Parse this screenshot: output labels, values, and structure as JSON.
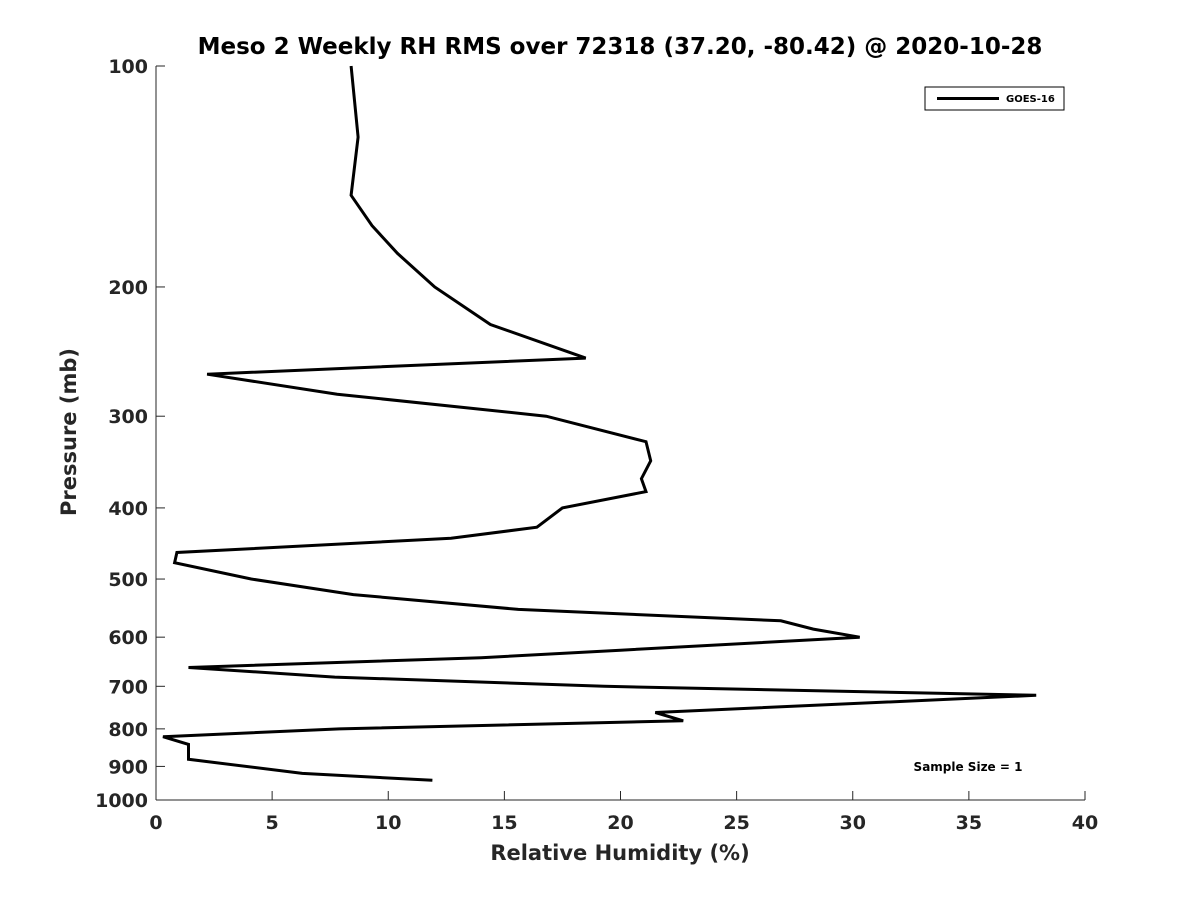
{
  "chart_data": {
    "type": "line",
    "title": "Meso 2 Weekly RH RMS over 72318 (37.20, -80.42) @ 2020-10-28",
    "xlabel": "Relative Humidity (%)",
    "ylabel": "Pressure (mb)",
    "xlim": [
      0,
      40
    ],
    "ylim": [
      100,
      1000
    ],
    "y_scale": "log",
    "y_reversed": true,
    "x_ticks": [
      0,
      5,
      10,
      15,
      20,
      25,
      30,
      35,
      40
    ],
    "y_ticks": [
      100,
      200,
      300,
      400,
      500,
      600,
      700,
      800,
      900,
      1000
    ],
    "grid": false,
    "legend_position": "top-right",
    "colors": {
      "GOES-16": "#000000"
    },
    "series": [
      {
        "name": "GOES-16",
        "points": [
          {
            "x": 8.4,
            "p": 100
          },
          {
            "x": 8.7,
            "p": 125
          },
          {
            "x": 8.4,
            "p": 150
          },
          {
            "x": 9.3,
            "p": 165
          },
          {
            "x": 10.4,
            "p": 180
          },
          {
            "x": 12.0,
            "p": 200
          },
          {
            "x": 14.4,
            "p": 225
          },
          {
            "x": 18.5,
            "p": 250
          },
          {
            "x": 2.2,
            "p": 263
          },
          {
            "x": 7.8,
            "p": 280
          },
          {
            "x": 16.8,
            "p": 300
          },
          {
            "x": 21.1,
            "p": 325
          },
          {
            "x": 21.3,
            "p": 345
          },
          {
            "x": 20.9,
            "p": 365
          },
          {
            "x": 21.1,
            "p": 380
          },
          {
            "x": 17.5,
            "p": 400
          },
          {
            "x": 16.4,
            "p": 425
          },
          {
            "x": 12.7,
            "p": 440
          },
          {
            "x": 0.9,
            "p": 460
          },
          {
            "x": 0.8,
            "p": 475
          },
          {
            "x": 4.1,
            "p": 500
          },
          {
            "x": 8.5,
            "p": 525
          },
          {
            "x": 15.6,
            "p": 550
          },
          {
            "x": 26.9,
            "p": 570
          },
          {
            "x": 28.3,
            "p": 585
          },
          {
            "x": 30.3,
            "p": 600
          },
          {
            "x": 20.0,
            "p": 625
          },
          {
            "x": 14.0,
            "p": 640
          },
          {
            "x": 1.4,
            "p": 660
          },
          {
            "x": 7.7,
            "p": 680
          },
          {
            "x": 19.3,
            "p": 700
          },
          {
            "x": 37.9,
            "p": 720
          },
          {
            "x": 21.5,
            "p": 760
          },
          {
            "x": 22.7,
            "p": 780
          },
          {
            "x": 7.9,
            "p": 800
          },
          {
            "x": 0.3,
            "p": 820
          },
          {
            "x": 1.4,
            "p": 840
          },
          {
            "x": 1.4,
            "p": 880
          },
          {
            "x": 6.3,
            "p": 920
          },
          {
            "x": 11.9,
            "p": 940
          }
        ]
      }
    ],
    "annotations": [
      "Sample Size = 1"
    ]
  }
}
